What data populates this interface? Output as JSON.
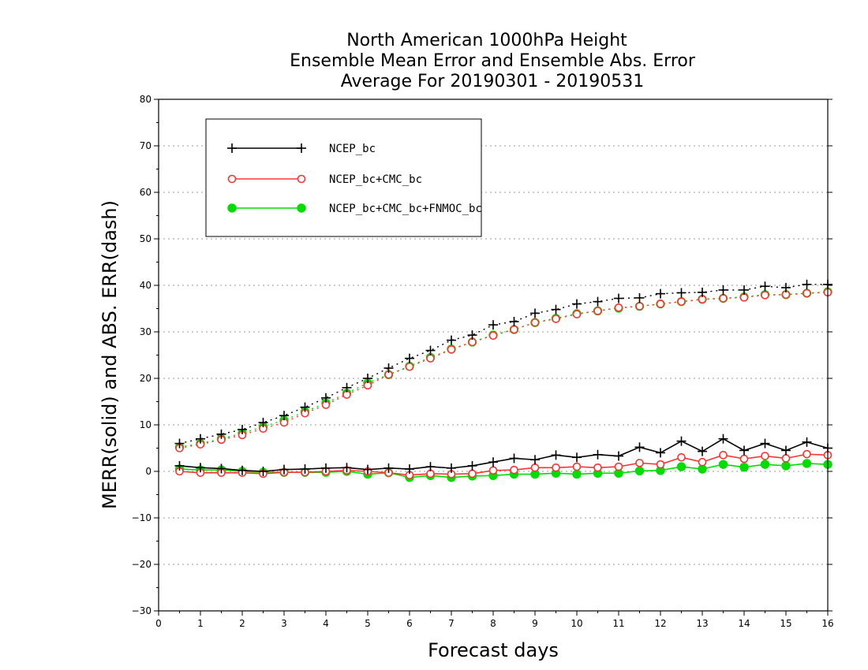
{
  "chart_data": {
    "type": "line",
    "title": [
      "North American 1000hPa Height",
      "Ensemble Mean Error and Ensemble Abs. Error",
      "Average For 20190301 - 20190531"
    ],
    "xlabel": "Forecast days",
    "ylabel": "MERR(solid) and ABS. ERR(dash)",
    "xlim": [
      0,
      16
    ],
    "ylim": [
      -30,
      80
    ],
    "xticks": [
      0,
      1,
      2,
      3,
      4,
      5,
      6,
      7,
      8,
      9,
      10,
      11,
      12,
      13,
      14,
      15,
      16
    ],
    "yticks": [
      -30,
      -20,
      -10,
      0,
      10,
      20,
      30,
      40,
      50,
      60,
      70,
      80
    ],
    "grid": "horizontal dotted",
    "legend_position": "top-left",
    "x": [
      0.5,
      1.0,
      1.5,
      2.0,
      2.5,
      3.0,
      3.5,
      4.0,
      4.5,
      5.0,
      5.5,
      6.0,
      6.5,
      7.0,
      7.5,
      8.0,
      8.5,
      9.0,
      9.5,
      10.0,
      10.5,
      11.0,
      11.5,
      12.0,
      12.5,
      13.0,
      13.5,
      14.0,
      14.5,
      15.0,
      15.5,
      16.0
    ],
    "series": [
      {
        "name": "NCEP_bc",
        "color": "#000000",
        "marker": "plus",
        "merr": [
          1.2,
          0.8,
          0.6,
          0.2,
          0.0,
          0.4,
          0.5,
          0.7,
          0.8,
          0.4,
          0.7,
          0.5,
          1.0,
          0.7,
          1.2,
          2.0,
          2.8,
          2.5,
          3.5,
          3.0,
          3.6,
          3.3,
          5.2,
          4.0,
          6.5,
          4.3,
          7.0,
          4.5,
          6.0,
          4.5,
          6.3,
          5.0
        ],
        "abs_err": [
          6.0,
          7.0,
          8.0,
          9.0,
          10.5,
          12.0,
          13.8,
          15.8,
          18.0,
          20.0,
          22.2,
          24.3,
          26.0,
          28.2,
          29.3,
          31.5,
          32.2,
          34.0,
          34.8,
          36.0,
          36.5,
          37.2,
          37.3,
          38.2,
          38.4,
          38.5,
          39.0,
          39.0,
          39.8,
          39.5,
          40.2,
          40.2
        ]
      },
      {
        "name": "NCEP_bc+CMC_bc",
        "color": "#ff3333",
        "marker": "open-circle",
        "merr": [
          0.0,
          -0.3,
          -0.3,
          -0.3,
          -0.5,
          -0.2,
          -0.2,
          0.0,
          0.2,
          0.0,
          -0.3,
          -0.8,
          -0.5,
          -0.6,
          -0.5,
          0.2,
          0.3,
          0.8,
          0.8,
          1.0,
          0.8,
          1.0,
          1.8,
          1.5,
          3.0,
          2.0,
          3.5,
          2.7,
          3.3,
          2.8,
          3.7,
          3.5
        ],
        "abs_err": [
          5.0,
          5.8,
          6.8,
          7.8,
          9.2,
          10.5,
          12.5,
          14.3,
          16.5,
          18.5,
          20.8,
          22.5,
          24.3,
          26.2,
          27.8,
          29.2,
          30.5,
          32.0,
          32.8,
          33.8,
          34.5,
          35.2,
          35.5,
          36.0,
          36.5,
          37.0,
          37.2,
          37.4,
          37.9,
          38.0,
          38.3,
          38.5
        ]
      },
      {
        "name": "NCEP_bc+CMC_bc+FNMOC_bc",
        "color": "#00dd00",
        "marker": "filled-circle",
        "merr": [
          0.5,
          0.3,
          0.3,
          0.0,
          -0.2,
          -0.2,
          -0.2,
          -0.2,
          0.0,
          -0.6,
          -0.3,
          -1.3,
          -0.9,
          -1.3,
          -1.0,
          -0.9,
          -0.6,
          -0.6,
          -0.4,
          -0.6,
          -0.4,
          -0.4,
          0.1,
          0.2,
          1.0,
          0.5,
          1.5,
          0.9,
          1.5,
          1.2,
          1.7,
          1.5
        ],
        "abs_err": [
          5.2,
          6.0,
          7.0,
          8.2,
          9.6,
          11.0,
          12.8,
          14.7,
          16.8,
          19.0,
          20.8,
          22.6,
          24.5,
          26.3,
          27.8,
          29.3,
          30.5,
          32.0,
          32.9,
          33.9,
          34.5,
          35.1,
          35.5,
          36.0,
          36.5,
          37.0,
          37.2,
          37.5,
          38.0,
          38.0,
          38.3,
          38.6
        ]
      }
    ]
  }
}
